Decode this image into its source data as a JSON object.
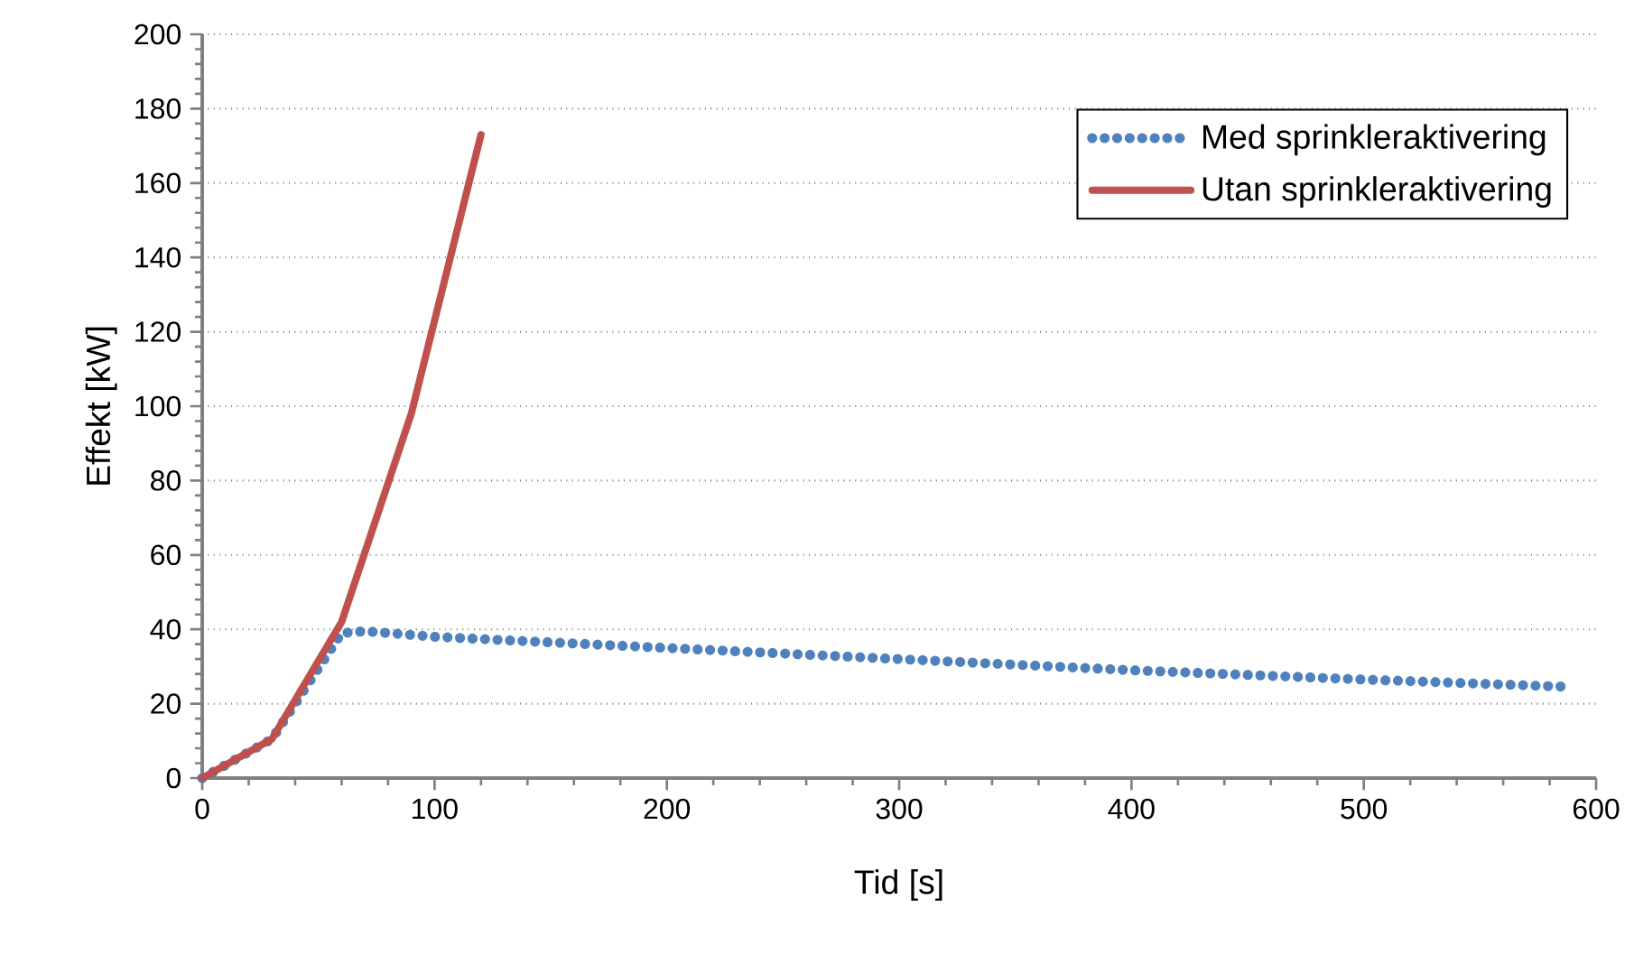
{
  "chart_data": {
    "type": "line",
    "xlabel": "Tid [s]",
    "ylabel": "Effekt [kW]",
    "xlim": [
      0,
      600
    ],
    "xticks": [
      0,
      100,
      200,
      300,
      400,
      500,
      600
    ],
    "ylim": [
      0,
      200
    ],
    "yticks": [
      0,
      20,
      40,
      60,
      80,
      100,
      120,
      140,
      160,
      180,
      200
    ],
    "grid": "y",
    "legend": "top right",
    "series": [
      {
        "name": "Med sprinkleraktivering",
        "color": "#4f81bd",
        "line_style": "dotted",
        "x": [
          0,
          30,
          60,
          70,
          100,
          200,
          300,
          400,
          500,
          590
        ],
        "values": [
          0,
          10.5,
          39,
          39.5,
          38,
          35,
          32,
          29,
          26.5,
          24.5
        ]
      },
      {
        "name": "Utan sprinkleraktivering",
        "color": "#c0504d",
        "line_style": "solid",
        "x": [
          0,
          30,
          60,
          90,
          120
        ],
        "values": [
          0,
          10.5,
          42,
          98,
          173
        ]
      }
    ]
  }
}
